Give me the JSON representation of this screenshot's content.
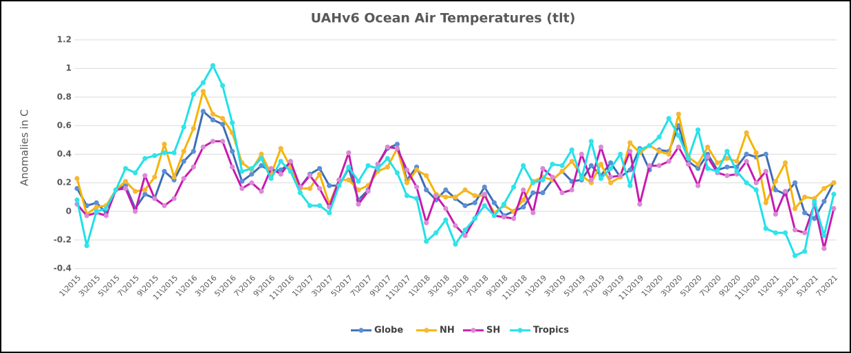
{
  "chart_data": {
    "type": "line",
    "title": "UAHv6 Ocean Air Temperatures (tlt)",
    "y_label": "Anomalies in C",
    "categories": [
      "1\\2015",
      null,
      "3\\2015",
      null,
      "5\\2015",
      null,
      "7\\2015",
      null,
      "9\\2015",
      null,
      "11\\2015",
      null,
      "1\\2016",
      null,
      "3\\2016",
      null,
      "5\\2016",
      null,
      "7\\2016",
      null,
      "9\\2016",
      null,
      "11\\2016",
      null,
      "1\\2017",
      null,
      "3\\2017",
      null,
      "5\\2017",
      null,
      "7\\2017",
      null,
      "9\\2017",
      null,
      "11\\2017",
      null,
      "1\\2018",
      null,
      "3\\2018",
      null,
      "5\\2018",
      null,
      "7\\2018",
      null,
      "9\\2018",
      null,
      "11\\2018",
      null,
      "1\\2019",
      null,
      "3\\2019",
      null,
      "5\\2019",
      null,
      "7\\2019",
      null,
      "9\\2019",
      null,
      "11\\2019",
      null,
      "1\\2020",
      null,
      "3\\2020",
      null,
      "5\\2020",
      null,
      "7\\2020",
      null,
      "9\\2020",
      null,
      "11\\2020",
      null,
      "1\\2021",
      null,
      "3\\2021",
      null,
      "5\\2021",
      null,
      "7\\2021"
    ],
    "series": [
      {
        "name": "Globe",
        "color": "#3d6db3",
        "marker_color": "#5b8fd6",
        "values": [
          0.16,
          0.04,
          0.06,
          -0.01,
          0.15,
          0.18,
          0.02,
          0.12,
          0.09,
          0.28,
          0.22,
          0.35,
          0.42,
          0.7,
          0.64,
          0.61,
          0.42,
          0.21,
          0.26,
          0.32,
          0.28,
          0.29,
          0.34,
          0.17,
          0.26,
          0.3,
          0.18,
          0.18,
          0.3,
          0.08,
          0.15,
          0.33,
          0.44,
          0.47,
          0.22,
          0.31,
          0.15,
          0.08,
          0.15,
          0.09,
          0.04,
          0.06,
          0.17,
          0.06,
          -0.03,
          0.0,
          0.03,
          0.13,
          0.13,
          0.22,
          0.28,
          0.21,
          0.22,
          0.32,
          0.25,
          0.34,
          0.24,
          0.29,
          0.44,
          0.29,
          0.43,
          0.42,
          0.6,
          0.35,
          0.3,
          0.4,
          0.29,
          0.31,
          0.31,
          0.4,
          0.38,
          0.4,
          0.15,
          0.12,
          0.2,
          -0.01,
          -0.05,
          0.07,
          0.2
        ]
      },
      {
        "name": "NH",
        "color": "#f5b400",
        "marker_color": "#f7b733",
        "values": [
          0.23,
          -0.02,
          0.03,
          0.04,
          0.15,
          0.21,
          0.14,
          0.15,
          0.24,
          0.47,
          0.24,
          0.42,
          0.58,
          0.84,
          0.68,
          0.65,
          0.55,
          0.34,
          0.29,
          0.4,
          0.26,
          0.44,
          0.31,
          0.16,
          0.16,
          0.26,
          0.05,
          0.22,
          0.22,
          0.15,
          0.18,
          0.28,
          0.31,
          0.44,
          0.2,
          0.29,
          0.25,
          0.12,
          0.1,
          0.1,
          0.15,
          0.11,
          0.11,
          -0.01,
          0.04,
          0.0,
          0.08,
          0.21,
          0.24,
          0.22,
          0.28,
          0.35,
          0.25,
          0.2,
          0.33,
          0.2,
          0.24,
          0.48,
          0.41,
          0.46,
          0.42,
          0.4,
          0.68,
          0.38,
          0.33,
          0.45,
          0.34,
          0.37,
          0.35,
          0.55,
          0.41,
          0.06,
          0.21,
          0.34,
          0.02,
          0.1,
          0.09,
          0.16,
          0.2
        ]
      },
      {
        "name": "SH",
        "color": "#c81ab0",
        "marker_color": "#d98ad6",
        "values": [
          0.05,
          -0.03,
          -0.01,
          -0.03,
          0.15,
          0.16,
          0.0,
          0.25,
          0.09,
          0.04,
          0.09,
          0.23,
          0.31,
          0.45,
          0.49,
          0.49,
          0.31,
          0.16,
          0.2,
          0.14,
          0.3,
          0.26,
          0.35,
          0.17,
          0.25,
          0.16,
          0.03,
          0.22,
          0.41,
          0.05,
          0.14,
          0.33,
          0.45,
          0.44,
          0.29,
          0.17,
          -0.08,
          0.11,
          0.02,
          -0.1,
          -0.17,
          -0.05,
          0.12,
          -0.03,
          -0.04,
          -0.05,
          0.15,
          -0.01,
          0.3,
          0.24,
          0.13,
          0.15,
          0.4,
          0.22,
          0.45,
          0.24,
          0.25,
          0.42,
          0.05,
          0.32,
          0.32,
          0.35,
          0.45,
          0.33,
          0.18,
          0.38,
          0.27,
          0.25,
          0.26,
          0.35,
          0.2,
          0.28,
          -0.02,
          0.14,
          -0.13,
          -0.15,
          0.05,
          -0.26,
          0.02
        ]
      },
      {
        "name": "Tropics",
        "color": "#1fe0e8",
        "marker_color": "#33e3ea",
        "values": [
          0.08,
          -0.24,
          0.0,
          0.02,
          0.15,
          0.3,
          0.27,
          0.37,
          0.39,
          0.41,
          0.41,
          0.59,
          0.82,
          0.9,
          1.02,
          0.88,
          0.62,
          0.28,
          0.3,
          0.37,
          0.23,
          0.35,
          0.28,
          0.13,
          0.04,
          0.04,
          -0.01,
          0.18,
          0.31,
          0.21,
          0.32,
          0.3,
          0.37,
          0.27,
          0.11,
          0.09,
          -0.21,
          -0.15,
          -0.06,
          -0.23,
          -0.13,
          -0.05,
          0.04,
          -0.03,
          0.05,
          0.17,
          0.32,
          0.2,
          0.22,
          0.33,
          0.32,
          0.43,
          0.23,
          0.49,
          0.23,
          0.3,
          0.4,
          0.18,
          0.43,
          0.46,
          0.52,
          0.65,
          0.53,
          0.37,
          0.57,
          0.3,
          0.28,
          0.42,
          0.28,
          0.2,
          0.15,
          -0.12,
          -0.15,
          -0.15,
          -0.31,
          -0.28,
          0.07,
          -0.17,
          0.12
        ]
      }
    ],
    "ylim": [
      -0.4,
      1.2
    ],
    "yticks": [
      -0.4,
      -0.2,
      0,
      0.2,
      0.4,
      0.6,
      0.8,
      1,
      1.2
    ],
    "grid": true,
    "legend": "bottom"
  }
}
